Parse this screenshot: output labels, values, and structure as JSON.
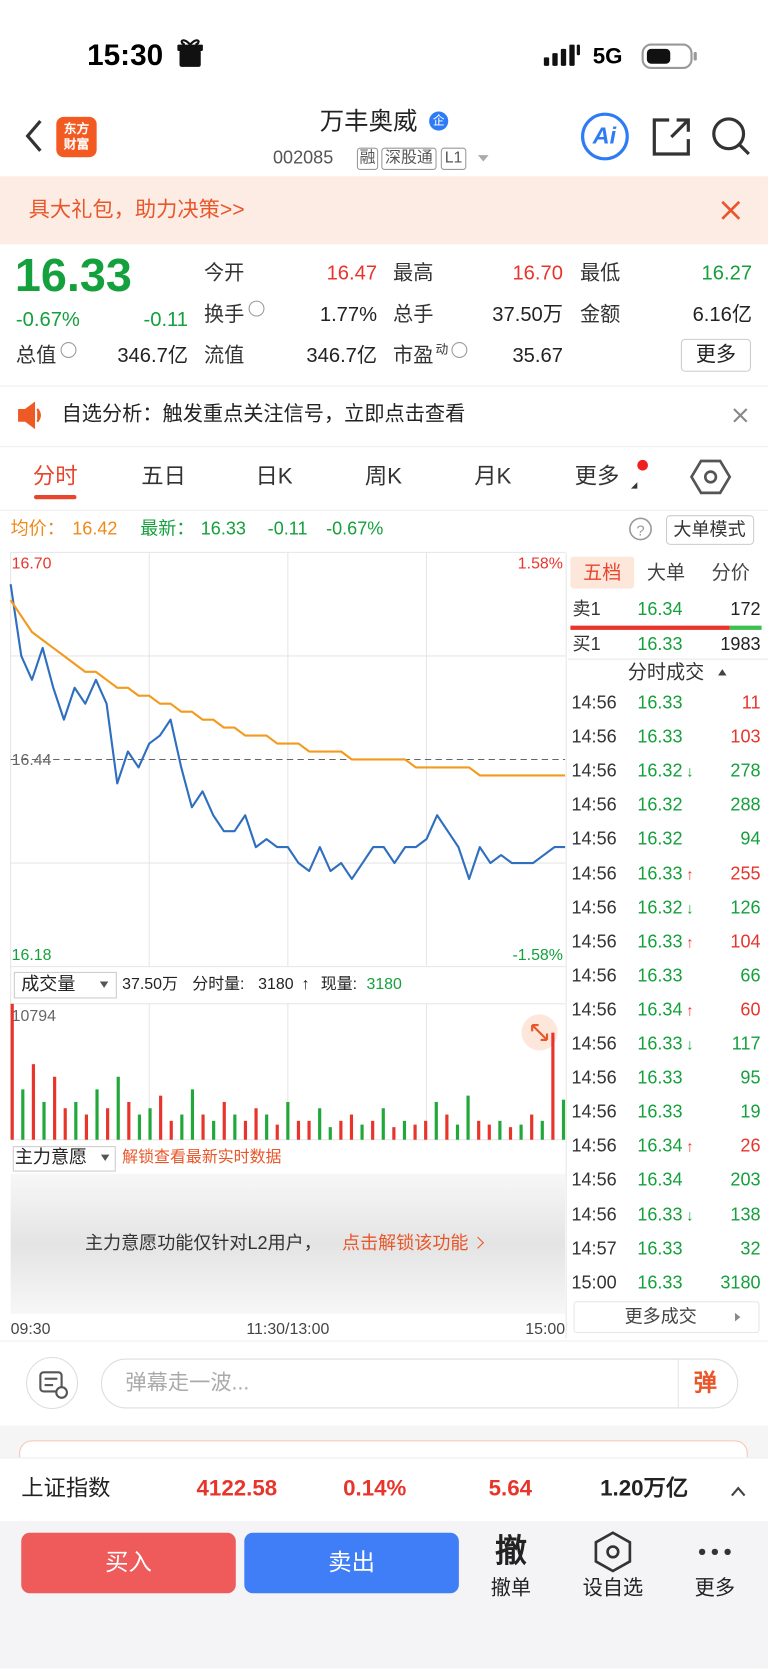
{
  "status": {
    "time": "15:30",
    "network": "5G"
  },
  "header": {
    "logo": "东方财富",
    "title": "万丰奥威",
    "badge": "企",
    "code": "002085",
    "tags": [
      "融",
      "深股通",
      "L1"
    ],
    "ai": "Ai"
  },
  "banner": {
    "text": "具大礼包，助力决策>>"
  },
  "quote": {
    "price": "16.33",
    "change_pct": "-0.67%",
    "change": "-0.11",
    "fields": [
      {
        "label": "今开",
        "value": "16.47",
        "color": "#e8352c"
      },
      {
        "label": "最高",
        "value": "16.70",
        "color": "#e8352c"
      },
      {
        "label": "最低",
        "value": "16.27",
        "color": "#14a03c"
      },
      {
        "label": "换手",
        "value": "1.77%",
        "color": "#222222"
      },
      {
        "label": "总手",
        "value": "37.50万",
        "color": "#222222"
      },
      {
        "label": "金额",
        "value": "6.16亿",
        "color": "#222222"
      },
      {
        "label": "总值",
        "value": "346.7亿",
        "color": "#222222"
      },
      {
        "label": "流值",
        "value": "346.7亿",
        "color": "#222222"
      },
      {
        "label": "市盈",
        "sup": "动",
        "value": "35.67",
        "color": "#222222"
      }
    ],
    "more": "更多"
  },
  "notice": {
    "text": "自选分析：触发重点关注信号，立即点击查看"
  },
  "tabs": [
    "分时",
    "五日",
    "日K",
    "周K",
    "月K",
    "更多"
  ],
  "info": {
    "avg_label": "均价：",
    "avg": "16.42",
    "last_label": "最新：",
    "last": "16.33",
    "change": "-0.11",
    "change_pct": "-0.67%",
    "mode": "大单模式"
  },
  "chart_data": [
    {
      "type": "line",
      "ylim": [
        16.18,
        16.7
      ],
      "yticks": [
        {
          "value": 16.7,
          "label": "16.70"
        },
        {
          "value": 16.44,
          "label": "16.44"
        },
        {
          "value": 16.18,
          "label": "16.18"
        }
      ],
      "y2lim": [
        -1.58,
        1.58
      ],
      "y2ticks": [
        {
          "value": 1.58,
          "label": "1.58%"
        },
        {
          "value": -1.58,
          "label": "-1.58%"
        }
      ],
      "x_labels": [
        "09:30",
        "11:30/13:00",
        "15:00"
      ],
      "grid": true,
      "series": [
        {
          "color": "#2f6fbf",
          "values": [
            16.66,
            16.57,
            16.54,
            16.58,
            16.53,
            16.49,
            16.53,
            16.51,
            16.54,
            16.51,
            16.41,
            16.45,
            16.43,
            16.46,
            16.47,
            16.49,
            16.43,
            16.38,
            16.4,
            16.37,
            16.35,
            16.35,
            16.37,
            16.33,
            16.34,
            16.33,
            16.33,
            16.31,
            16.3,
            16.33,
            16.3,
            16.31,
            16.29,
            16.31,
            16.33,
            16.33,
            16.31,
            16.33,
            16.33,
            16.34,
            16.37,
            16.35,
            16.33,
            16.29,
            16.33,
            16.31,
            16.32,
            16.31,
            16.31,
            16.31,
            16.32,
            16.33,
            16.33
          ]
        },
        {
          "color": "#f39a1e",
          "values": [
            16.64,
            16.62,
            16.6,
            16.59,
            16.58,
            16.57,
            16.56,
            16.55,
            16.55,
            16.54,
            16.53,
            16.53,
            16.52,
            16.52,
            16.51,
            16.51,
            16.5,
            16.5,
            16.49,
            16.49,
            16.48,
            16.48,
            16.47,
            16.47,
            16.47,
            16.46,
            16.46,
            16.46,
            16.45,
            16.45,
            16.45,
            16.45,
            16.44,
            16.44,
            16.44,
            16.44,
            16.44,
            16.44,
            16.43,
            16.43,
            16.43,
            16.43,
            16.43,
            16.43,
            16.42,
            16.42,
            16.42,
            16.42,
            16.42,
            16.42,
            16.42,
            16.42,
            16.42
          ]
        }
      ]
    },
    {
      "type": "bar",
      "ylim": [
        0,
        10794
      ],
      "yticks": [
        10794
      ],
      "values": [
        10794,
        4000,
        6000,
        3000,
        5000,
        2500,
        3000,
        2000,
        4000,
        2500,
        5000,
        3000,
        2000,
        2500,
        3500,
        1500,
        2000,
        4000,
        2000,
        1500,
        3000,
        2000,
        1500,
        2500,
        2000,
        1200,
        3000,
        1500,
        1500,
        2500,
        1000,
        1500,
        2000,
        1200,
        1500,
        2500,
        1000,
        1500,
        1200,
        1500,
        3000,
        2000,
        1200,
        3500,
        1500,
        1200,
        1500,
        1000,
        1200,
        2000,
        1500,
        8500,
        3180
      ],
      "colors": [
        "#e8352c",
        "#22a83a",
        "#e8352c",
        "#22a83a",
        "#e8352c",
        "#e8352c",
        "#22a83a",
        "#e8352c",
        "#22a83a",
        "#e8352c",
        "#22a83a",
        "#e8352c",
        "#22a83a",
        "#22a83a",
        "#e8352c",
        "#e8352c",
        "#22a83a",
        "#22a83a",
        "#e8352c",
        "#22a83a",
        "#e8352c",
        "#22a83a",
        "#e8352c",
        "#e8352c",
        "#22a83a",
        "#e8352c",
        "#22a83a",
        "#e8352c",
        "#e8352c",
        "#22a83a",
        "#22a83a",
        "#e8352c",
        "#e8352c",
        "#22a83a",
        "#e8352c",
        "#22a83a",
        "#e8352c",
        "#22a83a",
        "#e8352c",
        "#e8352c",
        "#22a83a",
        "#e8352c",
        "#22a83a",
        "#22a83a",
        "#e8352c",
        "#e8352c",
        "#22a83a",
        "#e8352c",
        "#22a83a",
        "#e8352c",
        "#22a83a",
        "#e8352c",
        "#22a83a"
      ]
    }
  ],
  "volume_header": {
    "selector": "成交量",
    "total": "37.50万",
    "tick_label": "分时量:",
    "tick_value": "3180",
    "arrow": "↑",
    "now_label": "现量:",
    "now_value": "3180"
  },
  "main_force": {
    "label": "主力意愿",
    "unlock": "解锁查看最新实时数据",
    "message": "主力意愿功能仅针对L2用户，",
    "link": "点击解锁该功能"
  },
  "depth": {
    "tabs": [
      "五档",
      "大单",
      "分价"
    ],
    "sell": {
      "label": "卖1",
      "price": "16.34",
      "volume": "172"
    },
    "buy": {
      "label": "买1",
      "price": "16.33",
      "volume": "1983"
    },
    "trades_title": "分时成交",
    "trades": [
      {
        "time": "14:56",
        "price": "16.33",
        "volume": "11",
        "color": "#e8352c"
      },
      {
        "time": "14:56",
        "price": "16.33",
        "volume": "103",
        "color": "#e8352c"
      },
      {
        "time": "14:56",
        "price": "16.32",
        "arrow": "↓",
        "volume": "278",
        "color": "#14a03c"
      },
      {
        "time": "14:56",
        "price": "16.32",
        "volume": "288",
        "color": "#14a03c"
      },
      {
        "time": "14:56",
        "price": "16.32",
        "volume": "94",
        "color": "#14a03c"
      },
      {
        "time": "14:56",
        "price": "16.33",
        "arrow": "↑",
        "volume": "255",
        "color": "#e8352c"
      },
      {
        "time": "14:56",
        "price": "16.32",
        "arrow": "↓",
        "volume": "126",
        "color": "#14a03c"
      },
      {
        "time": "14:56",
        "price": "16.33",
        "arrow": "↑",
        "volume": "104",
        "color": "#e8352c"
      },
      {
        "time": "14:56",
        "price": "16.33",
        "volume": "66",
        "color": "#14a03c"
      },
      {
        "time": "14:56",
        "price": "16.34",
        "arrow": "↑",
        "volume": "60",
        "color": "#e8352c"
      },
      {
        "time": "14:56",
        "price": "16.33",
        "arrow": "↓",
        "volume": "117",
        "color": "#14a03c"
      },
      {
        "time": "14:56",
        "price": "16.33",
        "volume": "95",
        "color": "#14a03c"
      },
      {
        "time": "14:56",
        "price": "16.33",
        "volume": "19",
        "color": "#14a03c"
      },
      {
        "time": "14:56",
        "price": "16.34",
        "arrow": "↑",
        "volume": "26",
        "color": "#e8352c"
      },
      {
        "time": "14:56",
        "price": "16.34",
        "volume": "203",
        "color": "#14a03c"
      },
      {
        "time": "14:56",
        "price": "16.33",
        "arrow": "↓",
        "volume": "138",
        "color": "#14a03c"
      },
      {
        "time": "14:57",
        "price": "16.33",
        "volume": "32",
        "color": "#14a03c"
      },
      {
        "time": "15:00",
        "price": "16.33",
        "volume": "3180",
        "color": "#14a03c"
      }
    ],
    "more": "更多成交"
  },
  "comment": {
    "placeholder": "弹幕走一波...",
    "button": "弹"
  },
  "index": {
    "name": "上证指数",
    "value": "4122.58",
    "pct": "0.14%",
    "change": "5.64",
    "amount": "1.20万亿"
  },
  "actions": {
    "buy": "买入",
    "sell": "卖出",
    "cancel_icon": "撤",
    "cancel": "撤单",
    "watch": "设自选",
    "more": "更多"
  }
}
